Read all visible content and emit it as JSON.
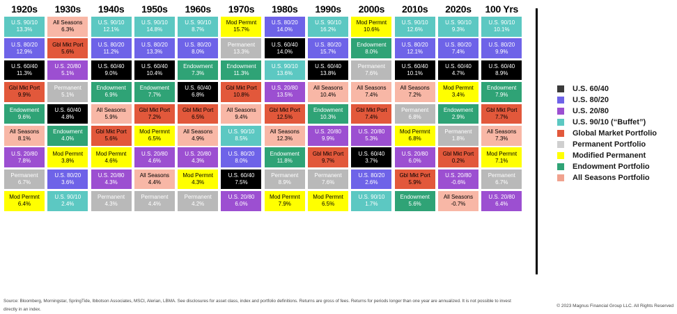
{
  "footer": {
    "disclaimer": "Source: Bloomberg, Morningstar, SpringTide, Ibbotson Associates, MSCI, Alerian, LBMA. See disclosures for asset class, index and portfolio definitions. Returns are gross of fees. Returns for periods longer than one year are annualized. It is not possible to invest directly in an index.",
    "copyright": "© 2023 Magnus Financial Group LLC. All Rights Reserved"
  },
  "chart_data": {
    "type": "heatmap",
    "description": "Periodic-table style quilt chart ranking annualized returns of nine model portfolios by decade",
    "column_headers": [
      "1920s",
      "1930s",
      "1940s",
      "1950s",
      "1960s",
      "1970s",
      "1980s",
      "1990s",
      "2000s",
      "2010s",
      "2020s",
      "100 Yrs"
    ],
    "portfolios": [
      {
        "key": "us6040",
        "short": "U.S. 60/40",
        "legend": "U.S. 60/40",
        "color": "#000000",
        "legend_color": "#3a3a3a",
        "text": "#ffffff"
      },
      {
        "key": "us8020",
        "short": "U.S. 80/20",
        "legend": "U.S. 80/20",
        "color": "#6e63e8",
        "text": "#ffffff"
      },
      {
        "key": "us2080",
        "short": "U.S. 20/80",
        "legend": "U.S. 20/80",
        "color": "#9c4fd1",
        "text": "#ffffff"
      },
      {
        "key": "us9010",
        "short": "U.S. 90/10",
        "legend": "U.S. 90/10 (“Buffet”)",
        "color": "#5cc8c2",
        "text": "#ffffff"
      },
      {
        "key": "gmp",
        "short": "Gbl Mkt Port",
        "legend": "Global Market Portfolio",
        "color": "#e2583b",
        "text": "#000000"
      },
      {
        "key": "perm",
        "short": "Permanent",
        "legend": "Permanent Portfolio",
        "color": "#b9b9b9",
        "legend_color": "#cfcfcf",
        "text": "#ffffff"
      },
      {
        "key": "modperm",
        "short": "Mod Permnt",
        "legend": "Modified Permanent",
        "color": "#ffff00",
        "text": "#000000"
      },
      {
        "key": "endow",
        "short": "Endowment",
        "legend": "Endowment Portfolio",
        "color": "#2fa376",
        "text": "#ffffff"
      },
      {
        "key": "allseasons",
        "short": "All Seasons",
        "legend": "All Seasons Portfolio",
        "color": "#f8b7a6",
        "legend_color": "#f0a28e",
        "text": "#000000"
      }
    ],
    "columns": [
      {
        "header": "1920s",
        "cells": [
          {
            "key": "us9010",
            "return_pct": 13.3
          },
          {
            "key": "us8020",
            "return_pct": 12.9
          },
          {
            "key": "us6040",
            "return_pct": 11.3
          },
          {
            "key": "gmp",
            "return_pct": 9.9
          },
          {
            "key": "endow",
            "return_pct": 9.6
          },
          {
            "key": "allseasons",
            "return_pct": 8.1
          },
          {
            "key": "us2080",
            "return_pct": 7.8
          },
          {
            "key": "perm",
            "return_pct": 6.7
          },
          {
            "key": "modperm",
            "return_pct": 6.4
          }
        ]
      },
      {
        "header": "1930s",
        "cells": [
          {
            "key": "allseasons",
            "return_pct": 6.3
          },
          {
            "key": "gmp",
            "return_pct": 5.6
          },
          {
            "key": "us2080",
            "return_pct": 5.1
          },
          {
            "key": "perm",
            "return_pct": 5.1
          },
          {
            "key": "us6040",
            "return_pct": 4.8
          },
          {
            "key": "endow",
            "return_pct": 4.0
          },
          {
            "key": "modperm",
            "return_pct": 3.8
          },
          {
            "key": "us8020",
            "return_pct": 3.6
          },
          {
            "key": "us9010",
            "return_pct": 2.4
          }
        ]
      },
      {
        "header": "1940s",
        "cells": [
          {
            "key": "us9010",
            "return_pct": 12.1
          },
          {
            "key": "us8020",
            "return_pct": 11.2
          },
          {
            "key": "us6040",
            "return_pct": 9.0
          },
          {
            "key": "endow",
            "return_pct": 6.9
          },
          {
            "key": "allseasons",
            "return_pct": 5.9
          },
          {
            "key": "gmp",
            "return_pct": 5.6
          },
          {
            "key": "modperm",
            "return_pct": 4.6
          },
          {
            "key": "us2080",
            "return_pct": 4.3
          },
          {
            "key": "perm",
            "return_pct": 4.3
          }
        ]
      },
      {
        "header": "1950s",
        "cells": [
          {
            "key": "us9010",
            "return_pct": 14.8
          },
          {
            "key": "us8020",
            "return_pct": 13.3
          },
          {
            "key": "us6040",
            "return_pct": 10.4
          },
          {
            "key": "endow",
            "return_pct": 7.7
          },
          {
            "key": "gmp",
            "return_pct": 7.2
          },
          {
            "key": "modperm",
            "return_pct": 6.5
          },
          {
            "key": "us2080",
            "return_pct": 4.6
          },
          {
            "key": "allseasons",
            "return_pct": 4.4
          },
          {
            "key": "perm",
            "return_pct": 4.4
          }
        ]
      },
      {
        "header": "1960s",
        "cells": [
          {
            "key": "us9010",
            "return_pct": 8.7
          },
          {
            "key": "us8020",
            "return_pct": 8.0
          },
          {
            "key": "endow",
            "return_pct": 7.3
          },
          {
            "key": "us6040",
            "return_pct": 6.8
          },
          {
            "key": "gmp",
            "return_pct": 6.5
          },
          {
            "key": "allseasons",
            "return_pct": 4.9
          },
          {
            "key": "us2080",
            "return_pct": 4.3
          },
          {
            "key": "modperm",
            "return_pct": 4.3
          },
          {
            "key": "perm",
            "return_pct": 4.2
          }
        ]
      },
      {
        "header": "1970s",
        "cells": [
          {
            "key": "modperm",
            "return_pct": 15.7
          },
          {
            "key": "perm",
            "return_pct": 13.3
          },
          {
            "key": "endow",
            "return_pct": 11.3
          },
          {
            "key": "gmp",
            "return_pct": 10.8
          },
          {
            "key": "allseasons",
            "return_pct": 9.4
          },
          {
            "key": "us9010",
            "return_pct": 8.5
          },
          {
            "key": "us8020",
            "return_pct": 8.0
          },
          {
            "key": "us6040",
            "return_pct": 7.5
          },
          {
            "key": "us2080",
            "return_pct": 6.0
          }
        ]
      },
      {
        "header": "1980s",
        "cells": [
          {
            "key": "us8020",
            "return_pct": 14.0
          },
          {
            "key": "us6040",
            "return_pct": 14.0
          },
          {
            "key": "us9010",
            "return_pct": 13.6
          },
          {
            "key": "us2080",
            "return_pct": 13.5
          },
          {
            "key": "gmp",
            "return_pct": 12.5
          },
          {
            "key": "allseasons",
            "return_pct": 12.3
          },
          {
            "key": "endow",
            "return_pct": 11.8
          },
          {
            "key": "perm",
            "return_pct": 8.9
          },
          {
            "key": "modperm",
            "return_pct": 7.9
          }
        ]
      },
      {
        "header": "1990s",
        "cells": [
          {
            "key": "us9010",
            "return_pct": 16.2
          },
          {
            "key": "us8020",
            "return_pct": 15.7
          },
          {
            "key": "us6040",
            "return_pct": 13.8
          },
          {
            "key": "allseasons",
            "return_pct": 10.4
          },
          {
            "key": "endow",
            "return_pct": 10.3
          },
          {
            "key": "us2080",
            "return_pct": 9.9
          },
          {
            "key": "gmp",
            "return_pct": 9.7
          },
          {
            "key": "perm",
            "return_pct": 7.6
          },
          {
            "key": "modperm",
            "return_pct": 6.5
          }
        ]
      },
      {
        "header": "2000s",
        "cells": [
          {
            "key": "modperm",
            "return_pct": 10.6
          },
          {
            "key": "endow",
            "return_pct": 8.0
          },
          {
            "key": "perm",
            "return_pct": 7.6
          },
          {
            "key": "allseasons",
            "return_pct": 7.4
          },
          {
            "key": "gmp",
            "return_pct": 7.4
          },
          {
            "key": "us2080",
            "return_pct": 5.3
          },
          {
            "key": "us6040",
            "return_pct": 3.7
          },
          {
            "key": "us8020",
            "return_pct": 2.6
          },
          {
            "key": "us9010",
            "return_pct": 1.7
          }
        ]
      },
      {
        "header": "2010s",
        "cells": [
          {
            "key": "us9010",
            "return_pct": 12.6
          },
          {
            "key": "us8020",
            "return_pct": 12.1
          },
          {
            "key": "us6040",
            "return_pct": 10.1
          },
          {
            "key": "allseasons",
            "return_pct": 7.2
          },
          {
            "key": "perm",
            "return_pct": 6.8
          },
          {
            "key": "modperm",
            "return_pct": 6.8
          },
          {
            "key": "us2080",
            "return_pct": 6.0
          },
          {
            "key": "gmp",
            "return_pct": 5.9
          },
          {
            "key": "endow",
            "return_pct": 5.6
          }
        ]
      },
      {
        "header": "2020s",
        "cells": [
          {
            "key": "us9010",
            "return_pct": 9.3
          },
          {
            "key": "us8020",
            "return_pct": 7.4
          },
          {
            "key": "us6040",
            "return_pct": 4.7
          },
          {
            "key": "modperm",
            "return_pct": 3.4
          },
          {
            "key": "endow",
            "return_pct": 2.9
          },
          {
            "key": "perm",
            "return_pct": 1.8
          },
          {
            "key": "gmp",
            "return_pct": 0.2
          },
          {
            "key": "us2080",
            "return_pct": -0.6
          },
          {
            "key": "allseasons",
            "return_pct": -0.7
          }
        ]
      },
      {
        "header": "100 Yrs",
        "cells": [
          {
            "key": "us9010",
            "return_pct": 10.1
          },
          {
            "key": "us8020",
            "return_pct": 9.9
          },
          {
            "key": "us6040",
            "return_pct": 8.9
          },
          {
            "key": "endow",
            "return_pct": 7.9
          },
          {
            "key": "gmp",
            "return_pct": 7.7
          },
          {
            "key": "allseasons",
            "return_pct": 7.3
          },
          {
            "key": "modperm",
            "return_pct": 7.1
          },
          {
            "key": "perm",
            "return_pct": 6.7
          },
          {
            "key": "us2080",
            "return_pct": 6.4
          }
        ]
      }
    ]
  }
}
